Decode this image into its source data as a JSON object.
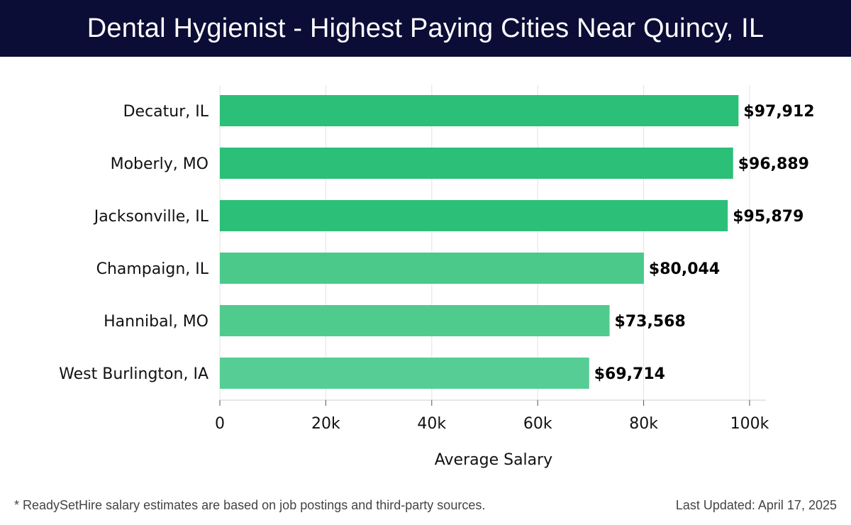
{
  "header": {
    "title": "Dental Hygienist - Highest Paying Cities Near Quincy, IL"
  },
  "chart_data": {
    "type": "bar",
    "orientation": "horizontal",
    "categories": [
      "Decatur, IL",
      "Moberly, MO",
      "Jacksonville, IL",
      "Champaign, IL",
      "Hannibal, MO",
      "West Burlington, IA"
    ],
    "values": [
      97912,
      96889,
      95879,
      80044,
      73568,
      69714
    ],
    "value_labels": [
      "$97,912",
      "$96,889",
      "$95,879",
      "$80,044",
      "$73,568",
      "$69,714"
    ],
    "bar_colors": [
      "#2bbf78",
      "#2bbf78",
      "#2bbf78",
      "#4bc98b",
      "#4fcb8d",
      "#56cd94"
    ],
    "xlabel": "Average Salary",
    "ylabel": "",
    "xlim": [
      0,
      100000
    ],
    "xticks": [
      0,
      20000,
      40000,
      60000,
      80000,
      100000
    ],
    "xtick_labels": [
      "0",
      "20k",
      "40k",
      "60k",
      "80k",
      "100k"
    ],
    "grid": true
  },
  "footer": {
    "note": "* ReadySetHire salary estimates are based on job postings and third-party sources.",
    "updated": "Last Updated: April 17, 2025"
  }
}
